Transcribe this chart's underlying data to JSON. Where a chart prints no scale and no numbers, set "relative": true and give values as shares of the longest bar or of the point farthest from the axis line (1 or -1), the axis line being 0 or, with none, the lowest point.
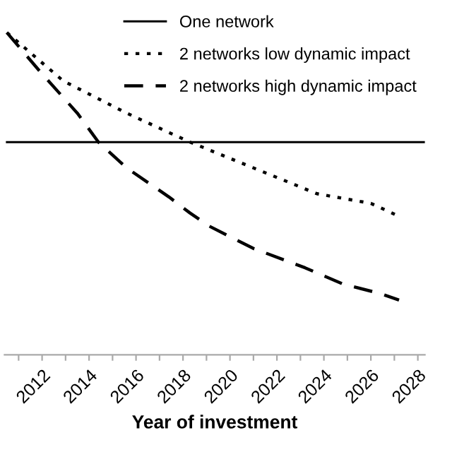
{
  "chart_data": {
    "type": "line",
    "xlabel": "Year of investment",
    "relative": true,
    "xlim": [
      2010.4,
      2028.3
    ],
    "xticks": [
      {
        "value": 2011,
        "label": null
      },
      2012,
      {
        "value": 2013,
        "label": null
      },
      2014,
      {
        "value": 2015,
        "label": null
      },
      2016,
      {
        "value": 2017,
        "label": null
      },
      2018,
      {
        "value": 2019,
        "label": null
      },
      2020,
      {
        "value": 2021,
        "label": null
      },
      2022,
      {
        "value": 2023,
        "label": null
      },
      2024,
      {
        "value": 2025,
        "label": null
      },
      2026,
      {
        "value": 2027,
        "label": null
      },
      2028
    ],
    "legend": "top right",
    "grid": false,
    "marker": "none",
    "series": [
      {
        "name": "One network",
        "color": "#000000",
        "line_style": "solid",
        "x": [
          2010.5,
          2028.3
        ],
        "values": [
          0.66,
          0.66
        ]
      },
      {
        "name": "2 networks low dynamic impact",
        "color": "#000000",
        "line_style": "dotted",
        "x": [
          2010.5,
          2012.9,
          2015.6,
          2018.3,
          2021.0,
          2023.7,
          2026.0,
          2027.2
        ],
        "values": [
          1.0,
          0.85,
          0.75,
          0.66,
          0.58,
          0.5,
          0.47,
          0.43
        ]
      },
      {
        "name": "2 networks high dynamic impact",
        "color": "#000000",
        "line_style": "dashed",
        "x": [
          2010.5,
          2011.9,
          2013.5,
          2014.4,
          2015.6,
          2017.4,
          2018.3,
          2019.1,
          2021.0,
          2023.2,
          2024.8,
          2026.4,
          2027.2
        ],
        "values": [
          1.0,
          0.88,
          0.75,
          0.66,
          0.58,
          0.49,
          0.44,
          0.4,
          0.33,
          0.27,
          0.22,
          0.19,
          0.17
        ]
      }
    ]
  }
}
